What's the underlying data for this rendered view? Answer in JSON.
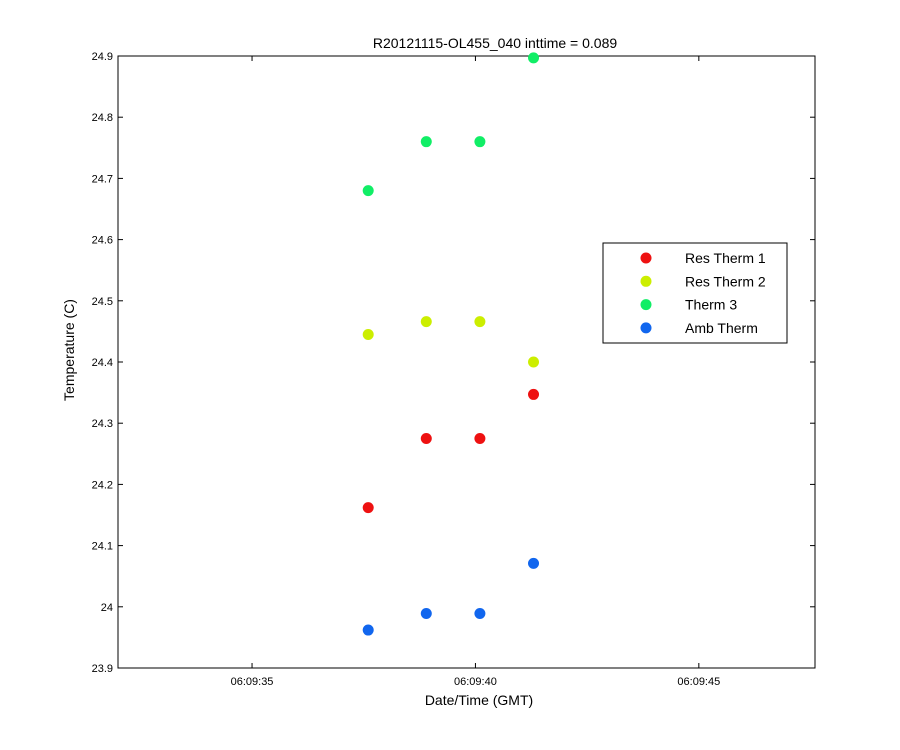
{
  "chart_data": {
    "type": "scatter",
    "title": "R20121115-OL455_040 inttime = 0.089",
    "xlabel": "Date/Time (GMT)",
    "ylabel": "Temperature (C)",
    "x_unit": "time",
    "xlim": [
      "06:09:32.0",
      "06:09:47.6"
    ],
    "ylim": [
      23.9,
      24.9
    ],
    "x_ticks": [
      "06:09:35",
      "06:09:40",
      "06:09:45"
    ],
    "y_ticks": [
      "23.9",
      "24",
      "24.1",
      "24.2",
      "24.3",
      "24.4",
      "24.5",
      "24.6",
      "24.7",
      "24.8",
      "24.9"
    ],
    "grid": false,
    "legend_position": "right",
    "series": [
      {
        "name": "Res Therm 1",
        "color": "#ee1111",
        "points": [
          {
            "x": "06:09:37.6",
            "y": 24.162
          },
          {
            "x": "06:09:38.9",
            "y": 24.275
          },
          {
            "x": "06:09:40.1",
            "y": 24.275
          },
          {
            "x": "06:09:41.3",
            "y": 24.347
          }
        ]
      },
      {
        "name": "Res Therm 2",
        "color": "#ccee00",
        "points": [
          {
            "x": "06:09:37.6",
            "y": 24.445
          },
          {
            "x": "06:09:38.9",
            "y": 24.466
          },
          {
            "x": "06:09:40.1",
            "y": 24.466
          },
          {
            "x": "06:09:41.3",
            "y": 24.4
          }
        ]
      },
      {
        "name": "Therm 3",
        "color": "#11ee66",
        "points": [
          {
            "x": "06:09:37.6",
            "y": 24.68
          },
          {
            "x": "06:09:38.9",
            "y": 24.76
          },
          {
            "x": "06:09:40.1",
            "y": 24.76
          },
          {
            "x": "06:09:41.3",
            "y": 24.897
          }
        ]
      },
      {
        "name": "Amb Therm",
        "color": "#1166ee",
        "points": [
          {
            "x": "06:09:37.6",
            "y": 23.962
          },
          {
            "x": "06:09:38.9",
            "y": 23.989
          },
          {
            "x": "06:09:40.1",
            "y": 23.989
          },
          {
            "x": "06:09:41.3",
            "y": 24.071
          }
        ]
      }
    ]
  }
}
